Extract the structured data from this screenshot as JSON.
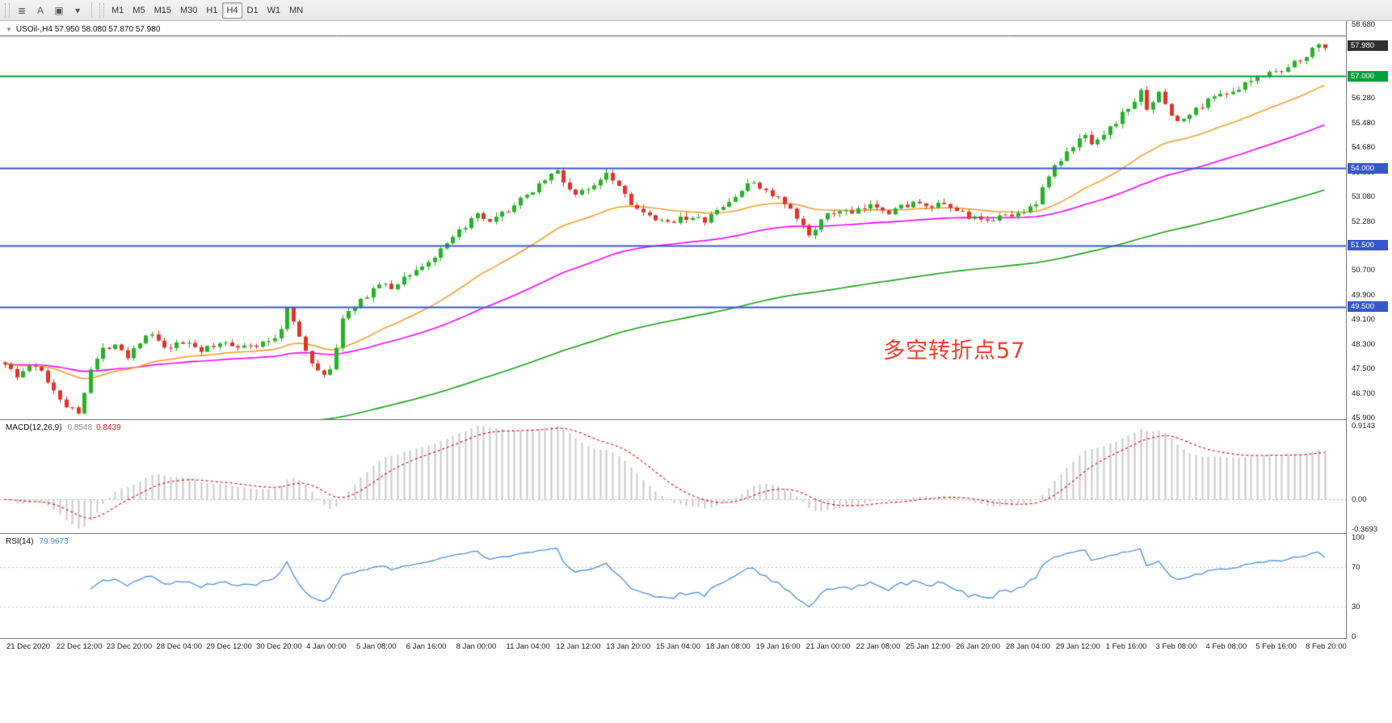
{
  "toolbar": {
    "icons": [
      {
        "name": "chart-window-icon",
        "glyph": "≣"
      },
      {
        "name": "text-annotation-icon",
        "glyph": "A"
      },
      {
        "name": "draw-objects-icon",
        "glyph": "▣"
      },
      {
        "name": "dropdown-caret-icon",
        "glyph": "▾"
      }
    ],
    "timeframes": [
      {
        "label": "M1",
        "active": false
      },
      {
        "label": "M5",
        "active": false
      },
      {
        "label": "M15",
        "active": false
      },
      {
        "label": "M30",
        "active": false
      },
      {
        "label": "H1",
        "active": false
      },
      {
        "label": "H4",
        "active": true
      },
      {
        "label": "D1",
        "active": false
      },
      {
        "label": "W1",
        "active": false
      },
      {
        "label": "MN",
        "active": false
      }
    ]
  },
  "main_chart": {
    "header": "USOil-,H4  57.950 58.080 57.870 57.980",
    "annotation": "多空转折点57",
    "y_labels": [
      "58.680",
      "57.880",
      "56.280",
      "55.480",
      "54.680",
      "53.880",
      "53.080",
      "52.280",
      "50.700",
      "49.900",
      "49.100",
      "48.300",
      "47.500",
      "46.700",
      "45.900"
    ],
    "price_tags": [
      {
        "text": "57.980",
        "bg": "#2F2F2F",
        "name": "current-price-tag"
      },
      {
        "text": "57.000",
        "bg": "#00A13A",
        "name": "level-tag-57000"
      },
      {
        "text": "54.000",
        "bg": "#3558C8",
        "name": "level-tag-54000"
      },
      {
        "text": "51.500",
        "bg": "#3558C8",
        "name": "level-tag-51500"
      },
      {
        "text": "49.500",
        "bg": "#3558C8",
        "name": "level-tag-49500"
      }
    ],
    "h_lines": [
      {
        "price": 58.3,
        "color": "#555555",
        "width": 1
      },
      {
        "price": 57.0,
        "color": "#00A13A",
        "width": 2
      },
      {
        "price": 54.0,
        "color": "#3558C8",
        "width": 2
      },
      {
        "price": 51.5,
        "color": "#3558C8",
        "width": 2
      },
      {
        "price": 49.5,
        "color": "#3558C8",
        "width": 2
      }
    ]
  },
  "macd": {
    "label": "MACD(12,26,9)",
    "main_value": "0.8548",
    "signal_value": "0.8439",
    "y_labels": [
      "0.9143",
      "0.00",
      "-0.3693"
    ]
  },
  "rsi": {
    "label": "RSI(14)",
    "value": "79.9673",
    "y_labels": [
      "100",
      "70",
      "30",
      "0"
    ]
  },
  "x_labels": [
    "21 Dec 2020",
    "22 Dec 12:00",
    "23 Dec 20:00",
    "28 Dec 04:00",
    "29 Dec 12:00",
    "30 Dec 20:00",
    "4 Jan 00:00",
    "5 Jan 08:00",
    "6 Jan 16:00",
    "8 Jan 00:00",
    "11 Jan 04:00",
    "12 Jan 12:00",
    "13 Jan 20:00",
    "15 Jan 04:00",
    "18 Jan 08:00",
    "19 Jan 16:00",
    "21 Jan 00:00",
    "22 Jan 08:00",
    "25 Jan 12:00",
    "26 Jan 20:00",
    "28 Jan 04:00",
    "29 Jan 12:00",
    "1 Feb 16:00",
    "3 Feb 08:00",
    "4 Feb 08:00",
    "5 Feb 16:00",
    "8 Feb 20:00"
  ],
  "chart_data": {
    "type": "candlestick",
    "symbol": "USOil-",
    "timeframe": "H4",
    "ohlc_current": {
      "open": 57.95,
      "high": 58.08,
      "low": 57.87,
      "close": 57.98
    },
    "bars": 216,
    "price_range": [
      45.9,
      58.68
    ],
    "seed": 1337,
    "volatility": 0.1,
    "wick": 0.15,
    "up_color": "#27B227",
    "down_color": "#E0352B",
    "waypoints": [
      [
        0,
        47.7
      ],
      [
        2,
        47.2
      ],
      [
        4,
        47.6
      ],
      [
        6,
        47.4
      ],
      [
        8,
        46.8
      ],
      [
        10,
        46.3
      ],
      [
        12,
        46.05
      ],
      [
        13,
        46.8
      ],
      [
        14,
        47.5
      ],
      [
        16,
        48.1
      ],
      [
        18,
        48.35
      ],
      [
        20,
        47.9
      ],
      [
        22,
        48.4
      ],
      [
        24,
        48.6
      ],
      [
        26,
        48.1
      ],
      [
        28,
        48.25
      ],
      [
        30,
        48.35
      ],
      [
        32,
        48.1
      ],
      [
        34,
        48.2
      ],
      [
        36,
        48.35
      ],
      [
        38,
        48.25
      ],
      [
        40,
        48.2
      ],
      [
        42,
        48.3
      ],
      [
        44,
        48.5
      ],
      [
        45,
        48.8
      ],
      [
        46,
        49.5
      ],
      [
        47,
        49.1
      ],
      [
        48,
        48.5
      ],
      [
        50,
        47.6
      ],
      [
        52,
        47.35
      ],
      [
        53,
        47.5
      ],
      [
        54,
        48.1
      ],
      [
        55,
        49.2
      ],
      [
        57,
        49.45
      ],
      [
        59,
        49.9
      ],
      [
        61,
        50.25
      ],
      [
        63,
        50.1
      ],
      [
        65,
        50.45
      ],
      [
        67,
        50.7
      ],
      [
        69,
        50.95
      ],
      [
        71,
        51.3
      ],
      [
        73,
        51.7
      ],
      [
        75,
        52.15
      ],
      [
        77,
        52.45
      ],
      [
        79,
        52.2
      ],
      [
        81,
        52.5
      ],
      [
        83,
        52.8
      ],
      [
        85,
        53.1
      ],
      [
        87,
        53.5
      ],
      [
        89,
        53.8
      ],
      [
        90,
        53.9
      ],
      [
        91,
        53.55
      ],
      [
        93,
        53.15
      ],
      [
        95,
        53.3
      ],
      [
        97,
        53.7
      ],
      [
        98,
        53.9
      ],
      [
        100,
        53.45
      ],
      [
        102,
        52.9
      ],
      [
        104,
        52.5
      ],
      [
        106,
        52.3
      ],
      [
        108,
        52.2
      ],
      [
        110,
        52.45
      ],
      [
        112,
        52.35
      ],
      [
        114,
        52.3
      ],
      [
        116,
        52.6
      ],
      [
        118,
        52.9
      ],
      [
        120,
        53.3
      ],
      [
        122,
        53.55
      ],
      [
        124,
        53.25
      ],
      [
        126,
        53.0
      ],
      [
        128,
        52.6
      ],
      [
        130,
        52.1
      ],
      [
        131,
        51.85
      ],
      [
        132,
        52.1
      ],
      [
        134,
        52.45
      ],
      [
        136,
        52.65
      ],
      [
        138,
        52.5
      ],
      [
        140,
        52.7
      ],
      [
        142,
        52.8
      ],
      [
        144,
        52.6
      ],
      [
        146,
        52.75
      ],
      [
        148,
        52.9
      ],
      [
        150,
        52.7
      ],
      [
        152,
        52.8
      ],
      [
        154,
        52.7
      ],
      [
        156,
        52.55
      ],
      [
        158,
        52.35
      ],
      [
        160,
        52.2
      ],
      [
        162,
        52.55
      ],
      [
        164,
        52.4
      ],
      [
        166,
        52.65
      ],
      [
        168,
        52.9
      ],
      [
        169,
        53.3
      ],
      [
        170,
        53.8
      ],
      [
        171,
        54.05
      ],
      [
        172,
        54.25
      ],
      [
        173,
        54.5
      ],
      [
        174,
        54.65
      ],
      [
        175,
        54.95
      ],
      [
        176,
        55.1
      ],
      [
        177,
        54.85
      ],
      [
        178,
        55.0
      ],
      [
        180,
        55.3
      ],
      [
        182,
        55.75
      ],
      [
        184,
        56.2
      ],
      [
        185,
        56.45
      ],
      [
        186,
        56.0
      ],
      [
        188,
        56.4
      ],
      [
        189,
        56.1
      ],
      [
        190,
        55.75
      ],
      [
        191,
        55.5
      ],
      [
        192,
        55.6
      ],
      [
        194,
        55.9
      ],
      [
        196,
        56.2
      ],
      [
        198,
        56.5
      ],
      [
        200,
        56.4
      ],
      [
        202,
        56.7
      ],
      [
        204,
        56.95
      ],
      [
        206,
        57.2
      ],
      [
        208,
        57.1
      ],
      [
        210,
        57.45
      ],
      [
        212,
        57.7
      ],
      [
        214,
        58.0
      ],
      [
        215,
        57.98
      ]
    ],
    "indicators": {
      "ma_fast": {
        "period": 30,
        "color": "#F0A030"
      },
      "ma_mid": {
        "period": 70,
        "color": "#FF00FF"
      },
      "ma_slow": {
        "period": 160,
        "color": "#15A015",
        "init_offset": -3.8
      },
      "macd": {
        "fast": 12,
        "slow": 26,
        "signal": 9,
        "range": [
          -0.3693,
          0.9143
        ],
        "hist_color": "#C9C9C9",
        "signal_color": "#E00000"
      },
      "rsi": {
        "period": 14,
        "range": [
          0,
          100
        ],
        "levels": [
          70,
          30
        ],
        "color": "#4A90D9",
        "level_color": "#C0C0C0"
      }
    }
  }
}
